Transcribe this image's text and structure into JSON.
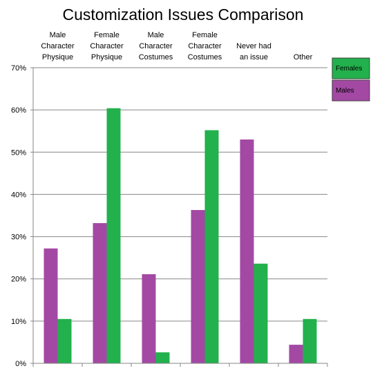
{
  "chart_data": {
    "type": "bar",
    "title": "Customization Issues Comparison",
    "categories": [
      [
        "Male",
        "Character",
        "Physique"
      ],
      [
        "Female",
        "Character",
        "Physique"
      ],
      [
        "Male",
        "Character",
        "Costumes"
      ],
      [
        "Female",
        "Character",
        "Costumes"
      ],
      [
        "Never had",
        "an issue"
      ],
      [
        "Other"
      ]
    ],
    "series": [
      {
        "name": "Males",
        "color": "#a349a4",
        "values": [
          27.2,
          33.2,
          21.1,
          36.3,
          53.0,
          4.4
        ]
      },
      {
        "name": "Females",
        "color": "#22b14c",
        "values": [
          10.5,
          60.4,
          2.6,
          55.2,
          23.6,
          10.5
        ]
      }
    ],
    "yticks": [
      "0%",
      "10%",
      "20%",
      "30%",
      "40%",
      "50%",
      "60%",
      "70%"
    ],
    "ylim": [
      0,
      70
    ],
    "grid": true,
    "legend": {
      "placement": "right",
      "order": [
        "Females",
        "Males"
      ]
    }
  }
}
